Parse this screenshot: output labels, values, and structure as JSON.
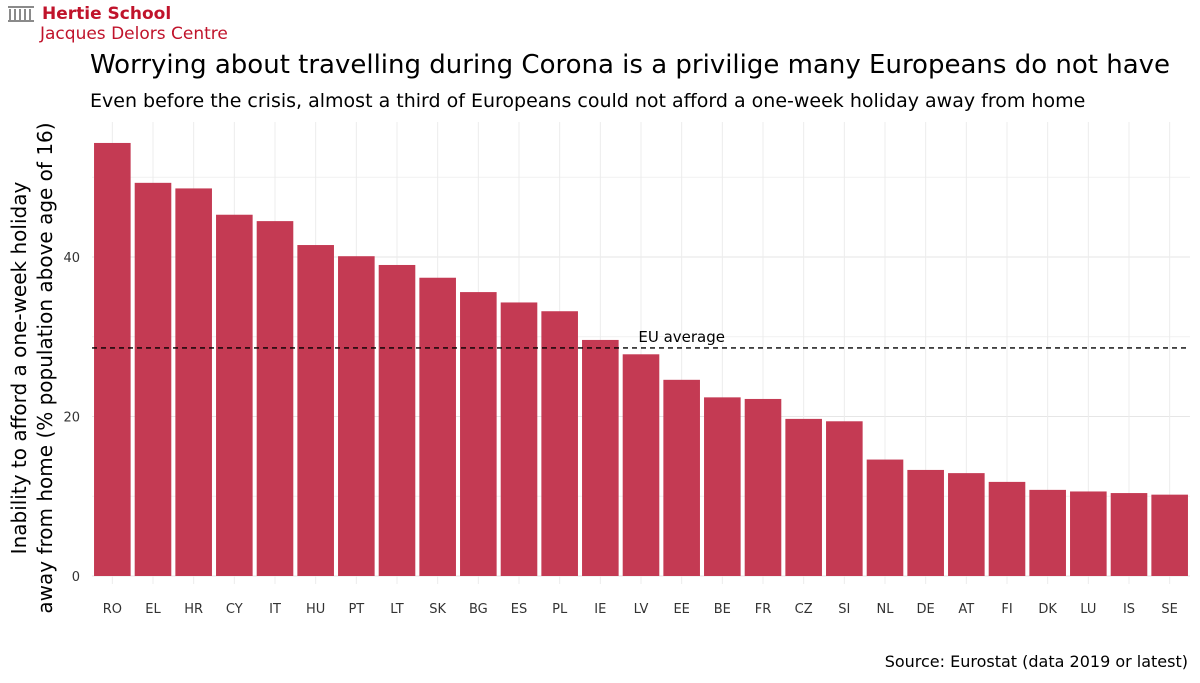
{
  "brand": {
    "name": "Hertie School",
    "subname": "Jacques Delors Centre",
    "logo_icon": "hertie-columns-icon",
    "color": "#c0132b"
  },
  "title": "Worrying about travelling during Corona is a privilige many Europeans do not have",
  "subtitle": "Even before the crisis, almost a third of Europeans could not afford a one-week holiday away from home",
  "source": "Source: Eurostat (data 2019 or latest)",
  "chart_data": {
    "type": "bar",
    "title": "Worrying about travelling during Corona is a privilige many Europeans do not have",
    "subtitle": "Even before the crisis, almost a third of Europeans could not afford a one-week holiday away from home",
    "xlabel": "",
    "ylabel_lines": [
      "Inability to afford a one-week holiday",
      "away from home (% population above age of 16)"
    ],
    "categories": [
      "RO",
      "EL",
      "HR",
      "CY",
      "IT",
      "HU",
      "PT",
      "LT",
      "SK",
      "BG",
      "ES",
      "PL",
      "IE",
      "LV",
      "EE",
      "BE",
      "FR",
      "CZ",
      "SI",
      "NL",
      "DE",
      "AT",
      "FI",
      "DK",
      "LU",
      "IS",
      "SE"
    ],
    "values": [
      54.3,
      49.3,
      48.6,
      45.3,
      44.5,
      41.5,
      40.1,
      39.0,
      37.4,
      35.6,
      34.3,
      33.2,
      29.6,
      27.8,
      24.6,
      22.4,
      22.2,
      19.7,
      19.4,
      14.6,
      13.3,
      12.9,
      11.8,
      10.8,
      10.6,
      10.4,
      10.2
    ],
    "ylim": [
      0,
      56
    ],
    "yticks": [
      0,
      20,
      40
    ],
    "grid": true,
    "bar_color": "#c43a53",
    "reference_line": {
      "value": 28.6,
      "label": "EU average",
      "style": "dashed"
    }
  }
}
